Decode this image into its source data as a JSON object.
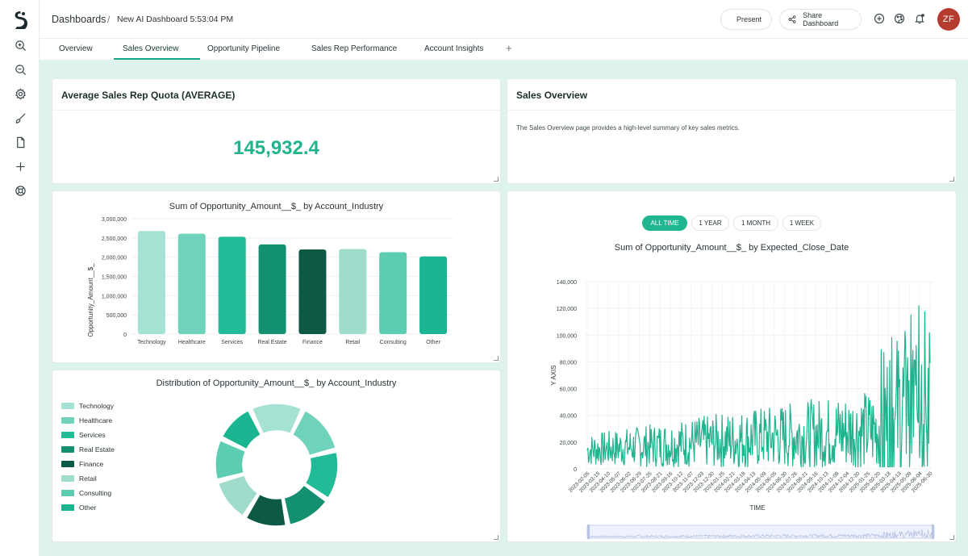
{
  "header": {
    "breadcrumb_root": "Dashboards",
    "breadcrumb_sep": "/",
    "dashboard_name": "New AI Dashboard 5:53:04 PM",
    "present_label": "Present",
    "share_label": "Share Dashboard",
    "avatar_initials": "ZF"
  },
  "tabs": [
    {
      "label": "Overview"
    },
    {
      "label": "Sales Overview"
    },
    {
      "label": "Opportunity Pipeline"
    },
    {
      "label": "Sales Rep Performance"
    },
    {
      "label": "Account Insights"
    }
  ],
  "tab_add_label": "+",
  "active_tab": "Sales Overview",
  "kpi_panel": {
    "title": "Average Sales Rep Quota (AVERAGE)",
    "value": "145,932.4"
  },
  "text_panel": {
    "title": "Sales Overview",
    "description": "The Sales Overview page provides a high-level summary of key sales metrics."
  },
  "time_filters": [
    {
      "label": "ALL TIME",
      "active": true
    },
    {
      "label": "1 YEAR",
      "active": false
    },
    {
      "label": "1 MONTH",
      "active": false
    },
    {
      "label": "1 WEEK",
      "active": false
    }
  ],
  "colors": {
    "accent": "#1fb38e",
    "avatar": "#b63c2f",
    "Technology": "#a6e2d3",
    "Healthcare": "#6fd3bb",
    "Services": "#22bb97",
    "Real Estate": "#13906f",
    "Finance": "#0c5a46",
    "Retail": "#9fdccb",
    "Consulting": "#5ccdb0",
    "Other": "#1cb592"
  },
  "chart_data": [
    {
      "type": "bar",
      "title": "Sum of Opportunity_Amount__$_ by Account_Industry",
      "ylabel": "Opportunity_Amount__$_",
      "xlabel": "",
      "categories": [
        "Technology",
        "Healthcare",
        "Services",
        "Real Estate",
        "Finance",
        "Retail",
        "Consulting",
        "Other"
      ],
      "values": [
        2680000,
        2610000,
        2530000,
        2330000,
        2200000,
        2210000,
        2130000,
        2020000
      ],
      "ylim": [
        0,
        3000000
      ],
      "yticks": [
        "0",
        "500,000",
        "1,000,000",
        "1,500,000",
        "2,000,000",
        "2,500,000",
        "3,000,000"
      ],
      "grid": true
    },
    {
      "type": "pie",
      "title": "Distribution of Opportunity_Amount__$_ by Account_Industry",
      "categories": [
        "Technology",
        "Healthcare",
        "Services",
        "Real Estate",
        "Finance",
        "Retail",
        "Consulting",
        "Other"
      ],
      "values": [
        2680000,
        2610000,
        2530000,
        2330000,
        2200000,
        2210000,
        2130000,
        2020000
      ],
      "legend": "left"
    },
    {
      "type": "line",
      "title": "Sum of Opportunity_Amount__$_ by Expected_Close_Date",
      "xlabel": "TIME",
      "ylabel": "Y AXIS",
      "ylim": [
        0,
        140000
      ],
      "yticks": [
        "0",
        "20,000",
        "40,000",
        "60,000",
        "80,000",
        "100,000",
        "120,000",
        "140,000"
      ],
      "x_range": [
        "2023-02-05",
        "2025-07-10"
      ],
      "xticks": [
        "2023-02-05",
        "2023-03-15",
        "2023-04-10",
        "2023-05-07",
        "2023-06-02",
        "2023-06-29",
        "2023-07-25",
        "2023-08-21",
        "2023-09-16",
        "2023-10-12",
        "2023-11-07",
        "2023-12-03",
        "2023-12-30",
        "2024-01-25",
        "2024-02-21",
        "2024-03-18",
        "2024-04-13",
        "2024-05-09",
        "2024-06-05",
        "2024-06-30",
        "2024-07-26",
        "2024-08-21",
        "2024-09-16",
        "2024-10-13",
        "2024-11-08",
        "2024-12-04",
        "2024-12-30",
        "2025-01-25",
        "2025-02-20",
        "2025-03-18",
        "2025-04-13",
        "2025-05-09",
        "2025-06-04",
        "2025-06-30"
      ],
      "series": [
        {
          "values": [
            15000,
            40000,
            120000,
            25000
          ]
        }
      ],
      "grid": true
    }
  ]
}
